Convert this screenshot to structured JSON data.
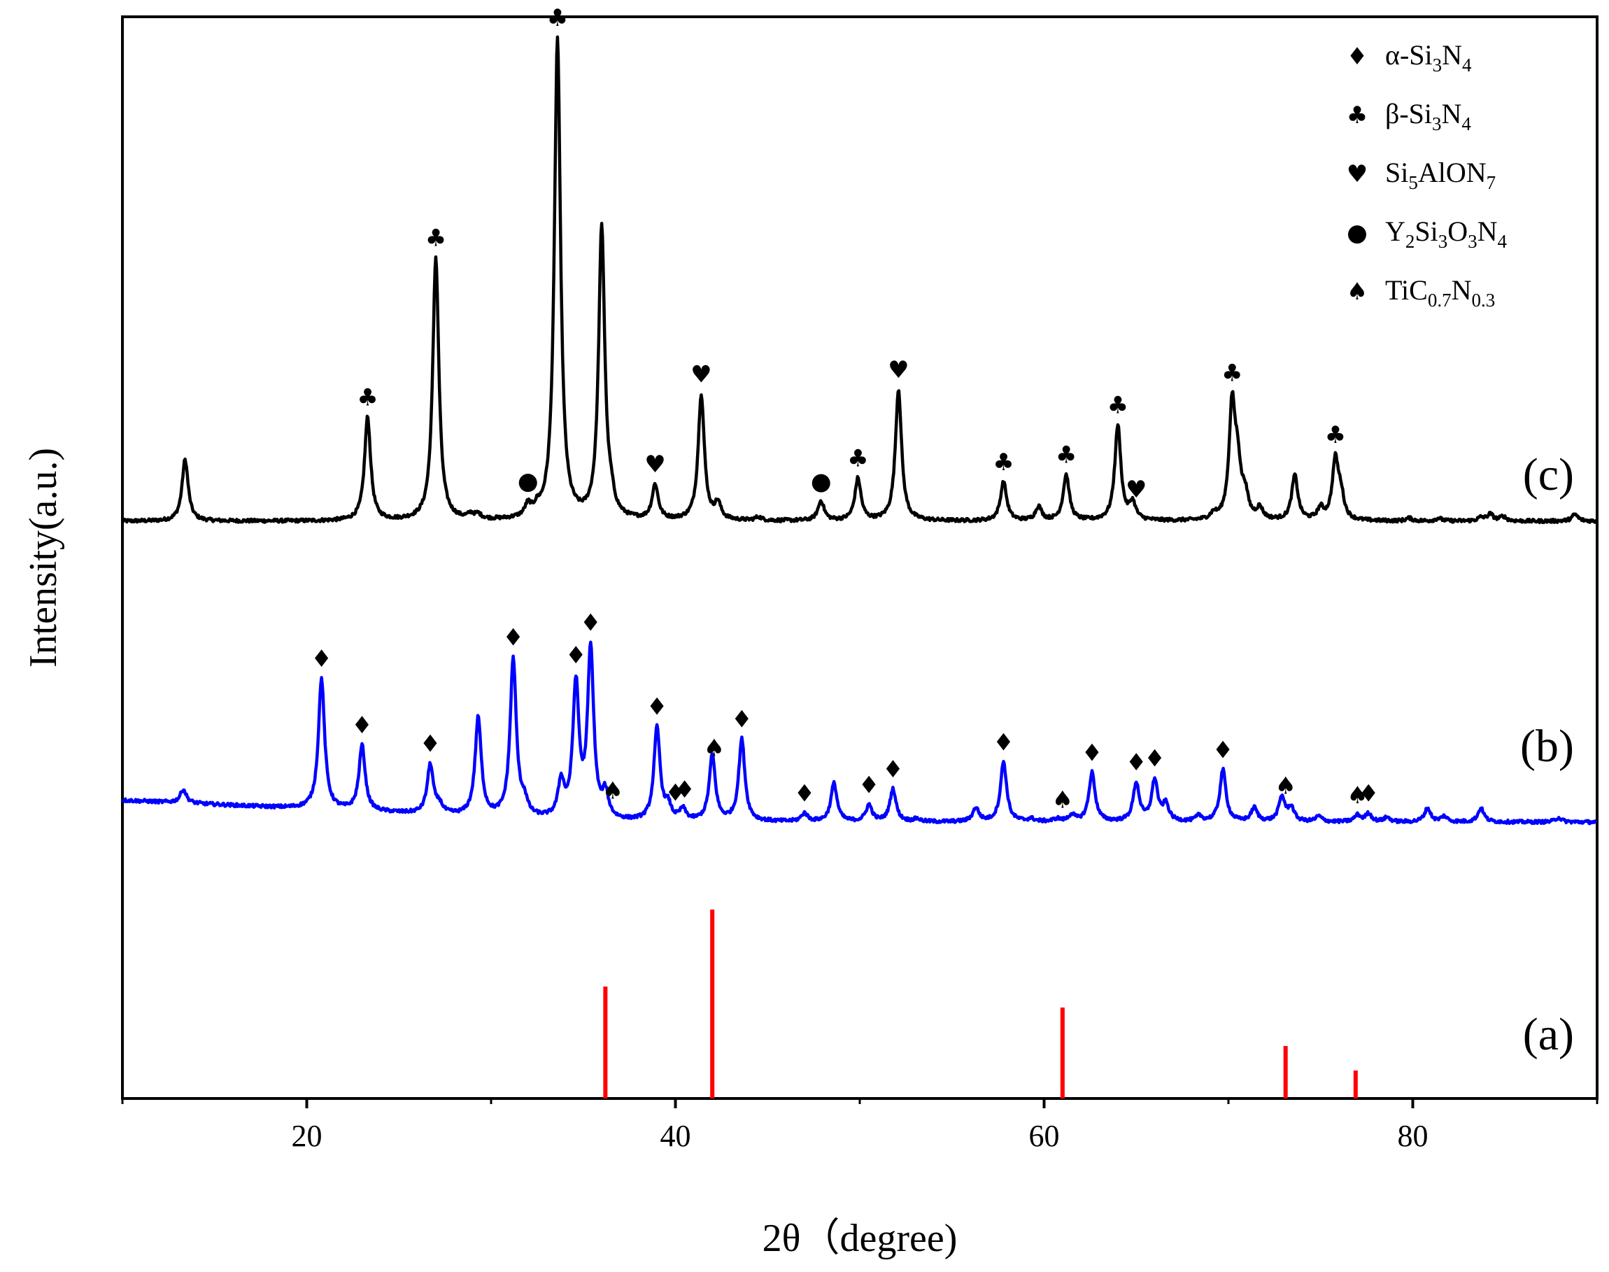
{
  "chart_data": {
    "type": "line",
    "xlabel": "2θ（degree)",
    "ylabel": "Intensity(a.u.)",
    "xlim": [
      10,
      90
    ],
    "xticks": [
      20,
      40,
      60,
      80
    ],
    "yticks_shown": false,
    "legend": {
      "placement": "top-right",
      "entries": [
        {
          "symbol": "diamond",
          "glyph": "♦",
          "label": "α-Si",
          "parts": [
            [
              "α-Si",
              ""
            ],
            [
              "3",
              "sub"
            ],
            [
              "N",
              ""
            ],
            [
              "4",
              "sub"
            ]
          ]
        },
        {
          "symbol": "club",
          "glyph": "♣",
          "label": "β-Si",
          "parts": [
            [
              "β-Si",
              ""
            ],
            [
              "3",
              "sub"
            ],
            [
              "N",
              ""
            ],
            [
              "4",
              "sub"
            ]
          ]
        },
        {
          "symbol": "heart",
          "glyph": "♥",
          "label": "Si",
          "parts": [
            [
              "Si",
              ""
            ],
            [
              "5",
              "sub"
            ],
            [
              "AlON",
              ""
            ],
            [
              "7",
              "sub"
            ]
          ]
        },
        {
          "symbol": "circle",
          "glyph": "●",
          "label": "Y",
          "parts": [
            [
              "Y",
              ""
            ],
            [
              "2",
              "sub"
            ],
            [
              "Si",
              ""
            ],
            [
              "3",
              "sub"
            ],
            [
              "O",
              ""
            ],
            [
              "3",
              "sub"
            ],
            [
              "N",
              ""
            ],
            [
              "4",
              "sub"
            ]
          ]
        },
        {
          "symbol": "spade",
          "glyph": "♠",
          "label": "TiC",
          "parts": [
            [
              "TiC",
              ""
            ],
            [
              "0.7",
              "sub"
            ],
            [
              "N",
              ""
            ],
            [
              "0.3",
              "sub"
            ]
          ]
        }
      ]
    },
    "series": [
      {
        "name": "(c)",
        "color": "#000000",
        "baseline": 0.0,
        "peak_width": 0.2,
        "peaks": [
          [
            13.4,
            110
          ],
          [
            23.3,
            185
          ],
          [
            27.0,
            470
          ],
          [
            28.9,
            8
          ],
          [
            29.3,
            8
          ],
          [
            32.0,
            20
          ],
          [
            32.5,
            12
          ],
          [
            33.6,
            860
          ],
          [
            36.0,
            520
          ],
          [
            36.5,
            25
          ],
          [
            38.9,
            62
          ],
          [
            41.4,
            225
          ],
          [
            42.3,
            28
          ],
          [
            44.5,
            6
          ],
          [
            47.9,
            35
          ],
          [
            49.9,
            75
          ],
          [
            52.1,
            235
          ],
          [
            57.8,
            70
          ],
          [
            59.7,
            25
          ],
          [
            61.2,
            82
          ],
          [
            64.0,
            170
          ],
          [
            64.8,
            30
          ],
          [
            69.2,
            10
          ],
          [
            70.2,
            200
          ],
          [
            70.5,
            85
          ],
          [
            70.9,
            40
          ],
          [
            71.7,
            20
          ],
          [
            73.6,
            80
          ],
          [
            75.0,
            20
          ],
          [
            75.8,
            105
          ],
          [
            76.1,
            40
          ],
          [
            79.8,
            5
          ],
          [
            81.4,
            5
          ],
          [
            83.7,
            6
          ],
          [
            84.2,
            12
          ],
          [
            84.9,
            8
          ],
          [
            88.8,
            12
          ]
        ],
        "markers": [
          {
            "x": 23.3,
            "symbol": "club"
          },
          {
            "x": 27.0,
            "symbol": "club"
          },
          {
            "x": 32.0,
            "symbol": "circle"
          },
          {
            "x": 33.6,
            "symbol": "club"
          },
          {
            "x": 38.9,
            "symbol": "heart"
          },
          {
            "x": 41.4,
            "symbol": "heart"
          },
          {
            "x": 47.9,
            "symbol": "circle"
          },
          {
            "x": 49.9,
            "symbol": "club"
          },
          {
            "x": 52.1,
            "symbol": "heart"
          },
          {
            "x": 57.8,
            "symbol": "club"
          },
          {
            "x": 61.2,
            "symbol": "club"
          },
          {
            "x": 64.0,
            "symbol": "club"
          },
          {
            "x": 65.0,
            "symbol": "heart"
          },
          {
            "x": 70.2,
            "symbol": "club"
          },
          {
            "x": 75.8,
            "symbol": "club"
          }
        ]
      },
      {
        "name": "(b)",
        "color": "#0000ff",
        "baseline": 40,
        "baseline_end": 0,
        "peak_width": 0.2,
        "peaks": [
          [
            13.3,
            25
          ],
          [
            20.8,
            240
          ],
          [
            23.0,
            120
          ],
          [
            26.7,
            90
          ],
          [
            27.2,
            15
          ],
          [
            29.3,
            180
          ],
          [
            31.2,
            290
          ],
          [
            31.8,
            25
          ],
          [
            33.8,
            65
          ],
          [
            34.6,
            245
          ],
          [
            35.4,
            310
          ],
          [
            36.2,
            45
          ],
          [
            39.0,
            170
          ],
          [
            39.6,
            25
          ],
          [
            40.4,
            20
          ],
          [
            42.0,
            120
          ],
          [
            43.6,
            150
          ],
          [
            47.0,
            15
          ],
          [
            48.6,
            70
          ],
          [
            50.5,
            30
          ],
          [
            51.8,
            60
          ],
          [
            53.1,
            5
          ],
          [
            56.3,
            25
          ],
          [
            57.8,
            110
          ],
          [
            59.3,
            5
          ],
          [
            60.7,
            5
          ],
          [
            61.5,
            12
          ],
          [
            62.6,
            90
          ],
          [
            65.0,
            70
          ],
          [
            66.0,
            75
          ],
          [
            66.6,
            30
          ],
          [
            68.4,
            10
          ],
          [
            69.7,
            95
          ],
          [
            71.4,
            25
          ],
          [
            72.9,
            45
          ],
          [
            73.4,
            25
          ],
          [
            74.9,
            10
          ],
          [
            77.0,
            12
          ],
          [
            77.6,
            15
          ],
          [
            78.6,
            8
          ],
          [
            80.8,
            25
          ],
          [
            81.7,
            10
          ],
          [
            83.7,
            25
          ],
          [
            87.9,
            8
          ]
        ],
        "markers": [
          {
            "x": 20.8,
            "symbol": "diamond"
          },
          {
            "x": 23.0,
            "symbol": "diamond"
          },
          {
            "x": 26.7,
            "symbol": "diamond"
          },
          {
            "x": 31.2,
            "symbol": "diamond"
          },
          {
            "x": 34.6,
            "symbol": "diamond"
          },
          {
            "x": 35.4,
            "symbol": "diamond"
          },
          {
            "x": 36.6,
            "symbol": "spade"
          },
          {
            "x": 39.0,
            "symbol": "diamond"
          },
          {
            "x": 40.0,
            "symbol": "diamond"
          },
          {
            "x": 40.5,
            "symbol": "diamond"
          },
          {
            "x": 42.1,
            "symbol": "spade"
          },
          {
            "x": 43.6,
            "symbol": "diamond"
          },
          {
            "x": 47.0,
            "symbol": "diamond"
          },
          {
            "x": 50.5,
            "symbol": "diamond"
          },
          {
            "x": 51.8,
            "symbol": "diamond"
          },
          {
            "x": 57.8,
            "symbol": "diamond"
          },
          {
            "x": 61.0,
            "symbol": "spade"
          },
          {
            "x": 62.6,
            "symbol": "diamond"
          },
          {
            "x": 65.0,
            "symbol": "diamond"
          },
          {
            "x": 66.0,
            "symbol": "diamond"
          },
          {
            "x": 69.7,
            "symbol": "diamond"
          },
          {
            "x": 73.1,
            "symbol": "spade"
          },
          {
            "x": 77.0,
            "symbol": "spade"
          },
          {
            "x": 77.6,
            "symbol": "diamond"
          }
        ]
      },
      {
        "name": "(a)",
        "color": "#ff0000",
        "kind": "reference-sticks",
        "sticks": [
          [
            36.2,
            160
          ],
          [
            42.0,
            270
          ],
          [
            61.0,
            130
          ],
          [
            73.1,
            75
          ],
          [
            76.9,
            40
          ]
        ]
      }
    ]
  }
}
